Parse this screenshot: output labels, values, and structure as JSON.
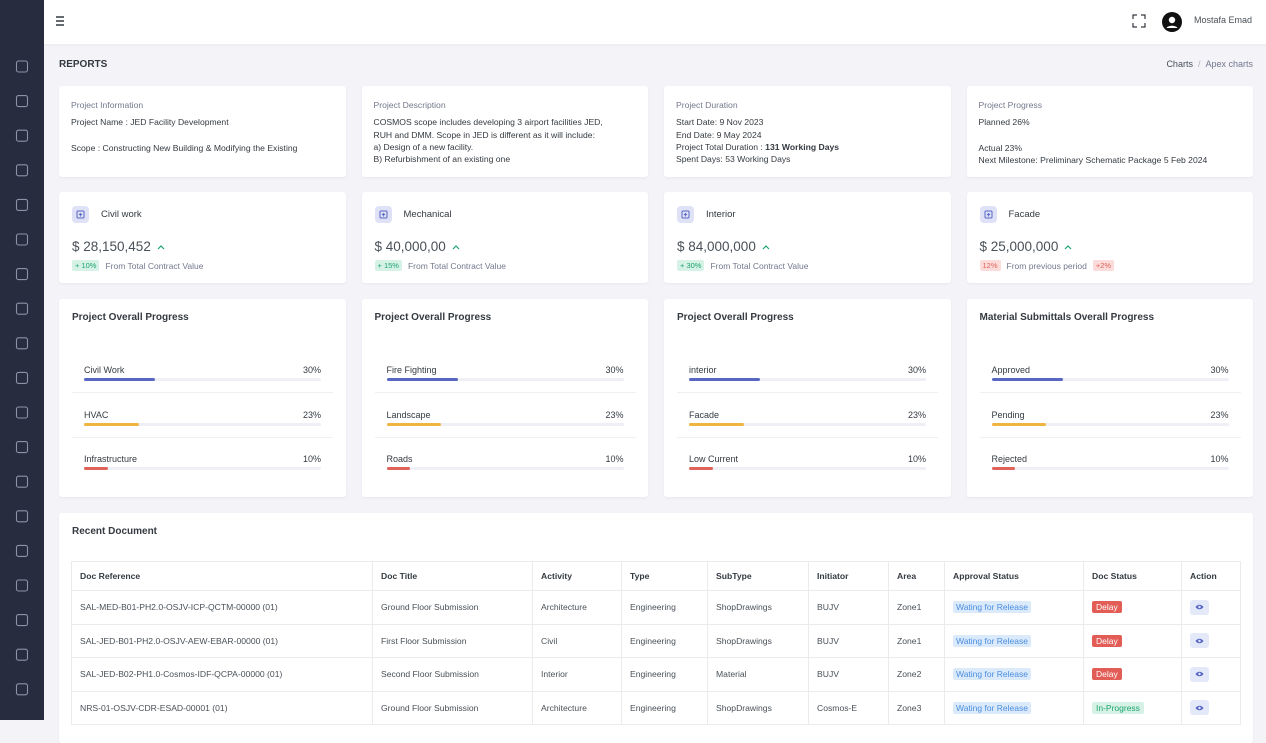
{
  "header": {
    "user_name": "Mostafa Emad"
  },
  "page": {
    "title": "REPORTS",
    "breadcrumb": [
      "Charts",
      "Apex charts"
    ]
  },
  "info_cards": [
    {
      "title": "Project Information",
      "paragraphs": [
        [
          {
            "text": "Project Name : JED Facility Development"
          }
        ],
        [
          {
            "text": "Scope : Constructing New Building & Modifying the Existing"
          }
        ]
      ]
    },
    {
      "title": "Project Description",
      "paragraphs": [
        [
          {
            "text": "COSMOS scope includes developing 3 airport facilities JED, RUH and DMM. Scope in JED is different as it will include:"
          },
          {
            "text": "a) Design of a new facility."
          },
          {
            "text": "B) Refurbishment of an existing one"
          }
        ]
      ]
    },
    {
      "title": "Project Duration",
      "paragraphs": [
        [
          {
            "text": "Start Date: 9 Nov 2023"
          },
          {
            "text": "End Date: 9 May 2024"
          },
          {
            "text": "Project Total Duration :",
            "strong": "131 Working Days"
          },
          {
            "text": "Spent Days: 53 Working Days"
          }
        ]
      ]
    },
    {
      "title": "Project Progress",
      "paragraphs": [
        [
          {
            "text": "Planned 26%"
          }
        ],
        [
          {
            "text": "Actual 23%"
          },
          {
            "text": "Next Milestone: Preliminary Schematic Package 5 Feb 2024"
          }
        ]
      ]
    }
  ],
  "stat_cards": [
    {
      "title": "Civil work",
      "amount": "$ 28,150,452",
      "badge": "+ 10%",
      "badge_tone": "success",
      "note": "From Total Contract Value"
    },
    {
      "title": "Mechanical",
      "amount": "$ 40,000,00",
      "badge": "+ 15%",
      "badge_tone": "success",
      "note": "From Total Contract Value"
    },
    {
      "title": "Interior",
      "amount": "$ 84,000,000",
      "badge": "+ 30%",
      "badge_tone": "success",
      "note": "From Total Contract Value"
    },
    {
      "title": "Facade",
      "amount": "$ 25,000,000",
      "badge": "12%",
      "badge_tone": "danger",
      "note": "From previous period",
      "extra_badge": "+2%"
    }
  ],
  "progress_cards": [
    {
      "title": "Project Overall Progress",
      "items": [
        {
          "label": "Civil Work",
          "value": 30,
          "value_label": "30%",
          "color": "#5867c3"
        },
        {
          "label": "HVAC",
          "value": 23,
          "value_label": "23%",
          "color": "#efb540"
        },
        {
          "label": "Infrastructure",
          "value": 10,
          "value_label": "10%",
          "color": "#e0625a"
        }
      ]
    },
    {
      "title": "Project Overall Progress",
      "items": [
        {
          "label": "Fire Fighting",
          "value": 30,
          "value_label": "30%",
          "color": "#5867c3"
        },
        {
          "label": "Landscape",
          "value": 23,
          "value_label": "23%",
          "color": "#efb540"
        },
        {
          "label": "Roads",
          "value": 10,
          "value_label": "10%",
          "color": "#e0625a"
        }
      ]
    },
    {
      "title": "Project Overall Progress",
      "items": [
        {
          "label": "interior",
          "value": 30,
          "value_label": "30%",
          "color": "#5867c3"
        },
        {
          "label": "Facade",
          "value": 23,
          "value_label": "23%",
          "color": "#efb540"
        },
        {
          "label": "Low Current",
          "value": 10,
          "value_label": "10%",
          "color": "#e0625a"
        }
      ]
    },
    {
      "title": "Material Submittals Overall Progress",
      "items": [
        {
          "label": "Approved",
          "value": 30,
          "value_label": "30%",
          "color": "#5867c3"
        },
        {
          "label": "Pending",
          "value": 23,
          "value_label": "23%",
          "color": "#efb540"
        },
        {
          "label": "Rejected",
          "value": 10,
          "value_label": "10%",
          "color": "#e0625a"
        }
      ]
    }
  ],
  "documents": {
    "title": "Recent Document",
    "columns": [
      "Doc Reference",
      "Doc Title",
      "Activity",
      "Type",
      "SubType",
      "Initiator",
      "Area",
      "Approval Status",
      "Doc Status",
      "Action"
    ],
    "rows": [
      {
        "cells": [
          "SAL-MED-B01-PH2.0-OSJV-ICP-QCTM-00000 (01)",
          "Ground Floor Submission",
          "Architecture",
          "Engineering",
          "ShopDrawings",
          "BUJV",
          "Zone1"
        ],
        "approval": "Wating for Release",
        "status": "Delay",
        "status_tone": "danger"
      },
      {
        "cells": [
          "SAL-JED-B01-PH2.0-OSJV-AEW-EBAR-00000 (01)",
          "First Floor Submission",
          "Civil",
          "Engineering",
          "ShopDrawings",
          "BUJV",
          "Zone1"
        ],
        "approval": "Wating for Release",
        "status": "Delay",
        "status_tone": "danger"
      },
      {
        "cells": [
          "SAL-JED-B02-PH1.0-Cosmos-IDF-QCPA-00000 (01)",
          "Second Floor Submission",
          "Interior",
          "Engineering",
          "Material",
          "BUJV",
          "Zone2"
        ],
        "approval": "Wating for Release",
        "status": "Delay",
        "status_tone": "danger"
      },
      {
        "cells": [
          "NRS-01-OSJV-CDR-ESAD-00001 (01)",
          "Ground Floor Submission",
          "Architecture",
          "Engineering",
          "ShopDrawings",
          "Cosmos-E",
          "Zone3"
        ],
        "approval": "Wating for Release",
        "status": "In-Progress",
        "status_tone": "success"
      }
    ]
  }
}
